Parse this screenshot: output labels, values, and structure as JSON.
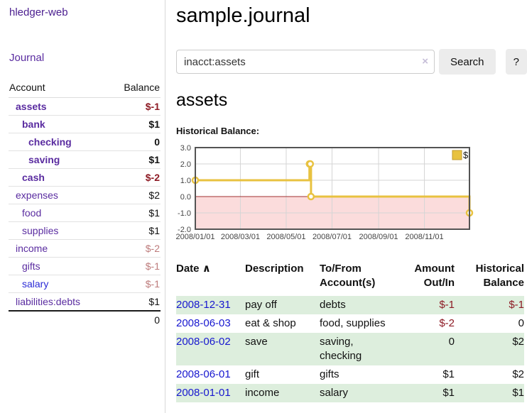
{
  "colors": {
    "accent_purple": "#5a2ca0",
    "link_blue": "#2b2bd6",
    "date_blue": "#1717cf",
    "negative_strong": "#8d1a24",
    "negative_soft": "#bd7b7b",
    "row_green": "#ddeedd",
    "chart_gold": "#e8c240",
    "negative_region_pink": "#fbdcdc",
    "zero_line_red": "#a03030",
    "chart_border": "#545454"
  },
  "sidebar": {
    "brand": "hledger-web",
    "journal_link": "Journal",
    "account_col": "Account",
    "balance_col": "Balance",
    "accounts": [
      {
        "name": "assets",
        "depth": 1,
        "balance": "$-1",
        "bold": true,
        "balance_class": "neg-strong"
      },
      {
        "name": "bank",
        "depth": 2,
        "balance": "$1",
        "bold": true,
        "balance_class": ""
      },
      {
        "name": "checking",
        "depth": 3,
        "balance": "0",
        "bold": true,
        "balance_class": ""
      },
      {
        "name": "saving",
        "depth": 3,
        "balance": "$1",
        "bold": true,
        "balance_class": ""
      },
      {
        "name": "cash",
        "depth": 2,
        "balance": "$-2",
        "bold": true,
        "balance_class": "neg-strong"
      },
      {
        "name": "expenses",
        "depth": 1,
        "balance": "$2",
        "bold": false,
        "balance_class": ""
      },
      {
        "name": "food",
        "depth": 2,
        "balance": "$1",
        "bold": false,
        "balance_class": ""
      },
      {
        "name": "supplies",
        "depth": 2,
        "balance": "$1",
        "bold": false,
        "balance_class": ""
      },
      {
        "name": "income",
        "depth": 1,
        "balance": "$-2",
        "bold": false,
        "balance_class": "neg-soft"
      },
      {
        "name": "gifts",
        "depth": 2,
        "balance": "$-1",
        "bold": false,
        "balance_class": "neg-soft"
      },
      {
        "name": "salary",
        "depth": 2,
        "balance": "$-1",
        "bold": false,
        "balance_class": "neg-soft",
        "link_class": "blue"
      },
      {
        "name": "liabilities:debts",
        "depth": 1,
        "balance": "$1",
        "bold": false,
        "balance_class": ""
      }
    ],
    "total": "0"
  },
  "header": {
    "title": "sample.journal"
  },
  "search": {
    "value": "inacct:assets",
    "clear_icon": "×",
    "search_button": "Search",
    "help_button": "?"
  },
  "account_view": {
    "heading": "assets",
    "chart_title": "Historical Balance:"
  },
  "chart_data": {
    "type": "line",
    "step": true,
    "title": "Historical Balance:",
    "series": [
      {
        "name": "$",
        "color": "#e8c240",
        "points": [
          [
            "2008-01-01",
            1
          ],
          [
            "2008-06-01",
            2
          ],
          [
            "2008-06-02",
            2
          ],
          [
            "2008-06-03",
            0
          ],
          [
            "2008-12-31",
            -1
          ]
        ]
      }
    ],
    "xlim": [
      "2008-01-01",
      "2008-12-31"
    ],
    "ylim": [
      -2,
      3
    ],
    "y_ticks": [
      "3.0",
      "2.0",
      "1.0",
      "0.0",
      "-1.0",
      "-2.0"
    ],
    "x_ticks": [
      "2008/01/01",
      "2008/03/01",
      "2008/05/01",
      "2008/07/01",
      "2008/09/01",
      "2008/11/01"
    ],
    "legend": {
      "label": "$",
      "position": "top-right"
    },
    "grid": true,
    "negative_region": true
  },
  "register": {
    "columns": {
      "date": "Date",
      "sort_icon": "∧",
      "description": "Description",
      "accounts": "To/From Account(s)",
      "amount": "Amount Out/In",
      "balance": "Historical Balance"
    },
    "rows": [
      {
        "date": "2008-12-31",
        "description": "pay off",
        "accounts": "debts",
        "amount": "$-1",
        "balance": "$-1"
      },
      {
        "date": "2008-06-03",
        "description": "eat & shop",
        "accounts": "food, supplies",
        "amount": "$-2",
        "balance": "0"
      },
      {
        "date": "2008-06-02",
        "description": "save",
        "accounts": "saving, checking",
        "amount": "0",
        "balance": "$2"
      },
      {
        "date": "2008-06-01",
        "description": "gift",
        "accounts": "gifts",
        "amount": "$1",
        "balance": "$2"
      },
      {
        "date": "2008-01-01",
        "description": "income",
        "accounts": "salary",
        "amount": "$1",
        "balance": "$1"
      }
    ]
  }
}
